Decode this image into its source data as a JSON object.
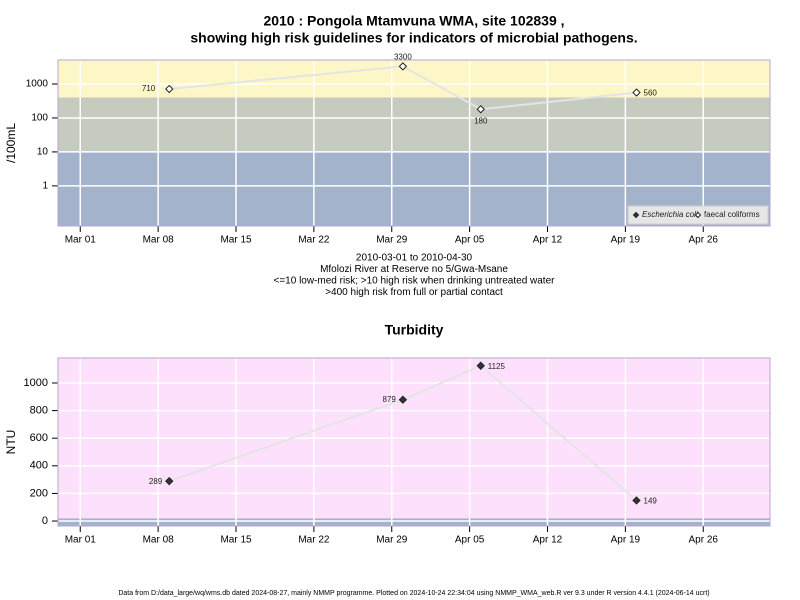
{
  "chart_data": [
    {
      "type": "line",
      "log_y": true,
      "title": [
        "2010 : Pongola Mtamvuna WMA, site 102839 ,",
        "showing high risk guidelines for indicators of microbial pathogens."
      ],
      "ylabel": "/100mL",
      "subtitle": [
        "2010-03-01 to 2010-04-30",
        "Mfolozi River at Reserve no 5/Gwa-Msane",
        "<=10 low-med risk; >10 high risk when drinking untreated water",
        ">400 high risk from full or partial contact"
      ],
      "x": [
        "Mar 09",
        "Mar 30",
        "Apr 06",
        "Apr 20"
      ],
      "series": [
        {
          "name": "Escherichia coli",
          "color": "#333333",
          "values": [
            null,
            null,
            null,
            null
          ]
        },
        {
          "name": "faecal coliforms",
          "color": "#ffffff",
          "values": [
            710,
            3300,
            180,
            560
          ]
        }
      ],
      "line_color": "#e4e4e4",
      "xlim": [
        "Feb 27",
        "May 02"
      ],
      "xticks": [
        "Mar 01",
        "Mar 08",
        "Mar 15",
        "Mar 22",
        "Mar 29",
        "Apr 05",
        "Apr 12",
        "Apr 19",
        "Apr 26"
      ],
      "ylim": [
        0.066,
        5080
      ],
      "yticks": [
        1,
        10,
        100,
        1000
      ],
      "bands": [
        {
          "from": 0.066,
          "to": 10,
          "color": "#a3b3cc"
        },
        {
          "from": 10,
          "to": 400,
          "color": "#c6cbc0"
        },
        {
          "from": 400,
          "to": 5080,
          "color": "#fdf7c8"
        }
      ],
      "grid": true,
      "legend": "bottom-right"
    },
    {
      "type": "line",
      "log_y": false,
      "title": [
        "Turbidity"
      ],
      "ylabel": "NTU",
      "x": [
        "Mar 09",
        "Mar 30",
        "Apr 06",
        "Apr 20"
      ],
      "series": [
        {
          "name": "Turbidity",
          "color": "#333333",
          "values": [
            289,
            879,
            1125,
            149
          ]
        }
      ],
      "line_color": "#e4e4e4",
      "xlim": [
        "Feb 27",
        "May 02"
      ],
      "xticks": [
        "Mar 01",
        "Mar 08",
        "Mar 15",
        "Mar 22",
        "Mar 29",
        "Apr 05",
        "Apr 12",
        "Apr 19",
        "Apr 26"
      ],
      "ylim": [
        -36,
        1181
      ],
      "yticks": [
        0,
        200,
        400,
        600,
        800,
        1000
      ],
      "bands": [
        {
          "from": -36,
          "to": 20,
          "color": "#a3b3cc"
        },
        {
          "from": 20,
          "to": 1181,
          "color": "#fde0fb"
        }
      ],
      "grid": true,
      "legend": null
    }
  ],
  "footer": "Data from D:/data_large/wq/wms.db dated 2024-08-27, mainly NMMP programme. Plotted on 2024-10-24 22:34:04 using NMMP_WMA_web.R ver 9.3 under R version 4.4.1 (2024-06-14 ucrt)"
}
